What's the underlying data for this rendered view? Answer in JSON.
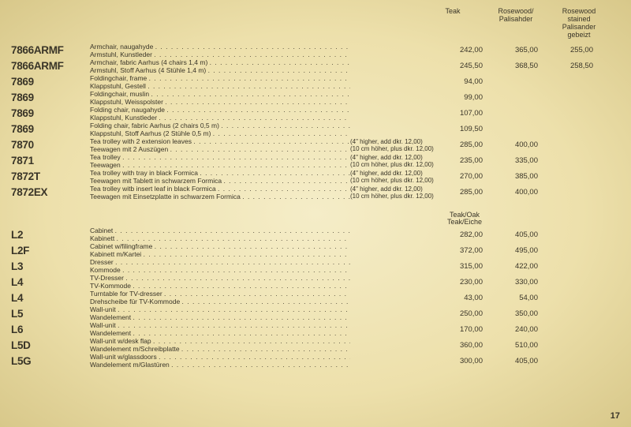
{
  "headers": {
    "col1": "Teak",
    "col2_l1": "Rosewood/",
    "col2_l2": "Palisahder",
    "col3_l1": "Rosewood",
    "col3_l2": "stained",
    "col3_l3": "Palisander",
    "col3_l4": "gebeizt"
  },
  "subheader": {
    "l1": "Teak/Oak",
    "l2": "Teak/Eiche"
  },
  "rows1": [
    {
      "code": "7866ARMF",
      "d1": "Armchair, naugahyde",
      "d2": "Armstuhl, Kunstleder",
      "n1": "",
      "n2": "",
      "p1": "242,00",
      "p2": "365,00",
      "p3": "255,00"
    },
    {
      "code": "7866ARMF",
      "d1": "Armchair, fabric Aarhus    (4 chairs 1,4 m)",
      "d2": "Armstuhl, Stoff Aarhus      (4 Stühle 1,4 m)",
      "n1": "",
      "n2": "",
      "p1": "245,50",
      "p2": "368,50",
      "p3": "258,50"
    },
    {
      "code": "7869",
      "d1": "Foldingchair, frame",
      "d2": "Klappstuhl, Gestell",
      "n1": "",
      "n2": "",
      "p1": "94,00",
      "p2": "",
      "p3": ""
    },
    {
      "code": "7869",
      "d1": "Foldingchair, muslin",
      "d2": "Klappstuhl, Weisspolster",
      "n1": "",
      "n2": "",
      "p1": "99,00",
      "p2": "",
      "p3": ""
    },
    {
      "code": "7869",
      "d1": "Folding chair, naugahyde",
      "d2": "Klappstuhl, Kunstleder",
      "n1": "",
      "n2": "",
      "p1": "107,00",
      "p2": "",
      "p3": ""
    },
    {
      "code": "7869",
      "d1": "Folding chair, fabric Aarhus  (2 chairs 0,5 m)",
      "d2": "Klappstuhl, Stoff Aarhus      (2 Stühle 0,5 m)",
      "n1": "",
      "n2": "",
      "p1": "109,50",
      "p2": "",
      "p3": ""
    },
    {
      "code": "7870",
      "d1": "Tea trolley with 2 extension leaves",
      "d2": "Teewagen mit 2 Auszügen",
      "n1": "(4\" higher, add dkr. 12,00)",
      "n2": "(10 cm höher, plus dkr. 12,00)",
      "p1": "285,00",
      "p2": "400,00",
      "p3": ""
    },
    {
      "code": "7871",
      "d1": "Tea trolley",
      "d2": "Teewagen",
      "n1": "(4\" higher, add dkr. 12,00)",
      "n2": "(10 cm höher, plus dkr. 12,00)",
      "p1": "235,00",
      "p2": "335,00",
      "p3": ""
    },
    {
      "code": "7872T",
      "d1": "Tea trolley with tray in black Formica",
      "d2": "Teewagen mit Tablett in schwarzem Formica",
      "n1": "(4\" higher, add dkr. 12,00)",
      "n2": "(10 cm höher, plus dkr. 12,00)",
      "p1": "270,00",
      "p2": "385,00",
      "p3": ""
    },
    {
      "code": "7872EX",
      "d1": "Tea trolley witb insert leaf in black Formica",
      "d2": "Teewagen mit Einsetzplatte in schwarzem Formica",
      "n1": "(4\" higher, add dkr. 12,00)",
      "n2": "(10 cm höher, plus dkr. 12,00)",
      "p1": "285,00",
      "p2": "400,00",
      "p3": ""
    }
  ],
  "rows2": [
    {
      "code": "L2",
      "d1": "Cabinet",
      "d2": "Kabinett",
      "p1": "282,00",
      "p2": "405,00"
    },
    {
      "code": "L2F",
      "d1": "Cabinet w/filingframe",
      "d2": "Kabinett m/Kartei",
      "p1": "372,00",
      "p2": "495,00"
    },
    {
      "code": "L3",
      "d1": "Dresser",
      "d2": "Kommode",
      "p1": "315,00",
      "p2": "422,00"
    },
    {
      "code": "L4",
      "d1": "TV-Dresser",
      "d2": "TV-Kommode",
      "p1": "230,00",
      "p2": "330,00"
    },
    {
      "code": "L4",
      "d1": "Turntable for TV-dresser",
      "d2": "Drehscheibe für TV-Kommode",
      "p1": "43,00",
      "p2": "54,00"
    },
    {
      "code": "L5",
      "d1": "Wall-unit",
      "d2": "Wandelement",
      "p1": "250,00",
      "p2": "350,00"
    },
    {
      "code": "L6",
      "d1": "Wall-unit",
      "d2": "Wandelement",
      "p1": "170,00",
      "p2": "240,00"
    },
    {
      "code": "L5D",
      "d1": "Wall-unit w/desk flap",
      "d2": "Wandelement m/Schreibplatte",
      "p1": "360,00",
      "p2": "510,00"
    },
    {
      "code": "L5G",
      "d1": "Wall-unit w/glassdoors",
      "d2": "Wandelement m/Glastüren",
      "p1": "300,00",
      "p2": "405,00"
    }
  ],
  "pagenum": "17"
}
